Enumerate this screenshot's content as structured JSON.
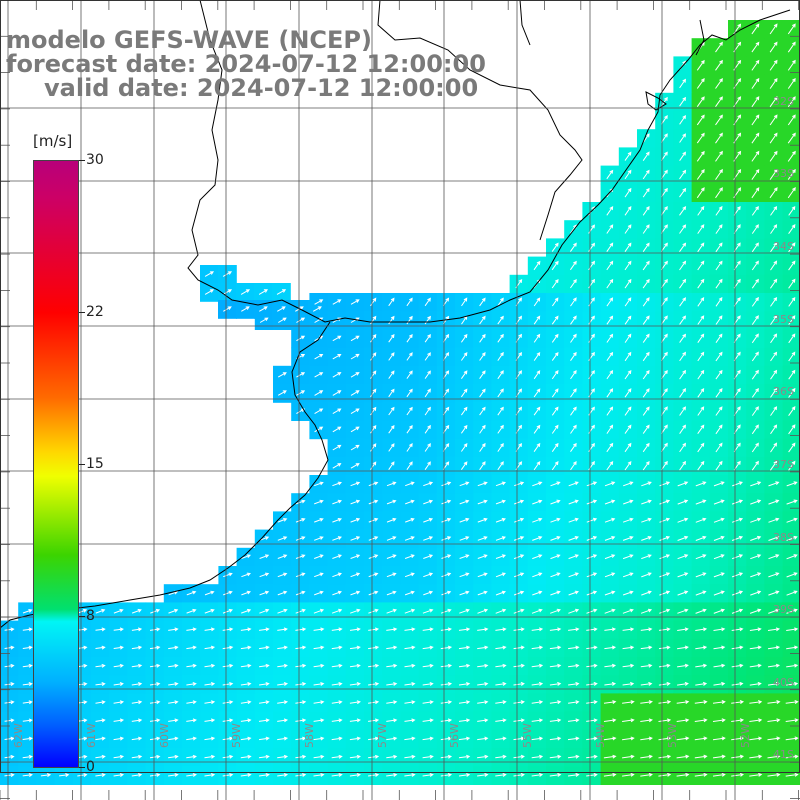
{
  "title": {
    "line1": "modelo GEFS-WAVE (NCEP)",
    "line2": "forecast date: 2024-07-12 12:00:00",
    "line3": "valid date: 2024-07-12 12:00:00"
  },
  "colorbar": {
    "unit": "[m/s]",
    "min": 0,
    "max": 30,
    "ticks": [
      "30",
      "22",
      "15",
      "8",
      "0"
    ]
  },
  "lat_labels": [
    "32S",
    "33S",
    "34S",
    "35S",
    "36S",
    "37S",
    "38S",
    "39S",
    "40S",
    "41S"
  ],
  "lon_labels": [
    "62W",
    "61W",
    "60W",
    "59W",
    "58W",
    "57W",
    "56W",
    "55W",
    "54W",
    "53W",
    "52W"
  ],
  "colors": {
    "background": "#ffffff",
    "grid": "#555555",
    "coast": "#000000",
    "arrow": "#ffffff",
    "title": "#7a7a7a"
  },
  "field": {
    "variable": "wind speed",
    "unit": "m/s",
    "range_visible": [
      4,
      11
    ]
  }
}
